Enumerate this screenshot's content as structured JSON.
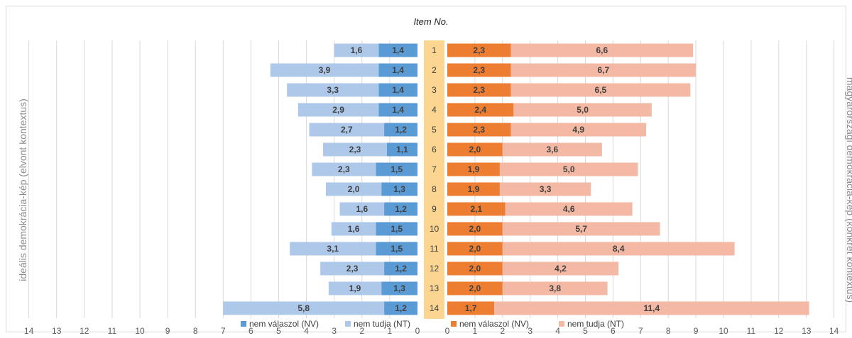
{
  "chart_data": {
    "type": "bar",
    "orientation": "horizontal",
    "title": "Item No.",
    "categories": [
      "1",
      "2",
      "3",
      "4",
      "5",
      "6",
      "7",
      "8",
      "9",
      "10",
      "11",
      "12",
      "13",
      "14"
    ],
    "left_panel": {
      "ylabel": "ideális demokrácia-kép (elvont kontextus)",
      "xlim": [
        0,
        14
      ],
      "ticks": [
        "14",
        "13",
        "12",
        "11",
        "10",
        "9",
        "8",
        "7",
        "6",
        "5",
        "4",
        "3",
        "2",
        "1",
        "0"
      ],
      "series": [
        {
          "name": "nem válaszol (NV)",
          "color": "#5b9bd5",
          "values": [
            1.4,
            1.4,
            1.4,
            1.4,
            1.2,
            1.1,
            1.5,
            1.3,
            1.2,
            1.5,
            1.5,
            1.2,
            1.3,
            1.2
          ]
        },
        {
          "name": "nem tudja (NT)",
          "color": "#adc8e8",
          "values": [
            1.6,
            3.9,
            3.3,
            2.9,
            2.7,
            2.3,
            2.3,
            2.0,
            1.6,
            1.6,
            3.1,
            2.3,
            1.9,
            5.8
          ]
        }
      ]
    },
    "right_panel": {
      "ylabel": "magyarországi demokrácia-kép (konkrét kontextus)",
      "xlim": [
        0,
        14
      ],
      "ticks": [
        "0",
        "1",
        "2",
        "3",
        "4",
        "5",
        "6",
        "7",
        "8",
        "9",
        "10",
        "11",
        "12",
        "13",
        "14"
      ],
      "series": [
        {
          "name": "nem válaszol (NV)",
          "color": "#ed7d31",
          "values": [
            2.3,
            2.3,
            2.3,
            2.4,
            2.3,
            2.0,
            1.9,
            1.9,
            2.1,
            2.0,
            2.0,
            2.0,
            2.0,
            1.7
          ]
        },
        {
          "name": "nem tudja (NT)",
          "color": "#f4b9a4",
          "values": [
            6.6,
            6.7,
            6.5,
            5.0,
            4.9,
            3.6,
            5.0,
            3.3,
            4.6,
            5.7,
            8.4,
            4.2,
            3.8,
            11.4
          ]
        }
      ]
    },
    "legend": [
      {
        "label": "nem válaszol (NV)",
        "color": "#5b9bd5"
      },
      {
        "label": "nem tudja (NT)",
        "color": "#adc8e8"
      },
      {
        "label": "nem válaszol (NV)",
        "color": "#ed7d31"
      },
      {
        "label": "nem tudja (NT)",
        "color": "#f4b9a4"
      }
    ],
    "grid": true,
    "center_column_color": "#fcd591"
  }
}
